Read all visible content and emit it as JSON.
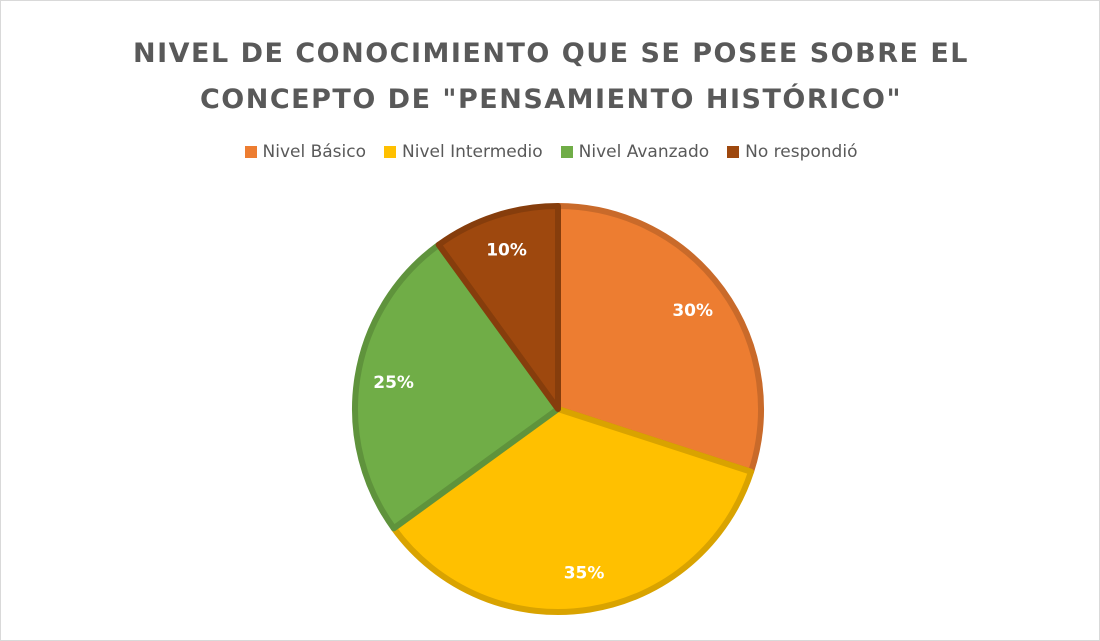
{
  "chart_data": {
    "type": "pie",
    "title": "NIVEL DE CONOCIMIENTO QUE SE POSEE SOBRE EL CONCEPTO DE \"PENSAMIENTO HISTÓRICO\"",
    "categories": [
      "Nivel Básico",
      "Nivel Intermedio",
      "Nivel Avanzado",
      "No respondió"
    ],
    "values": [
      30,
      35,
      25,
      10
    ],
    "value_labels": [
      "30%",
      "35%",
      "25%",
      "10%"
    ],
    "colors": [
      "#ED7D31",
      "#FFC000",
      "#70AD47",
      "#9E480E"
    ],
    "legend": "top"
  }
}
